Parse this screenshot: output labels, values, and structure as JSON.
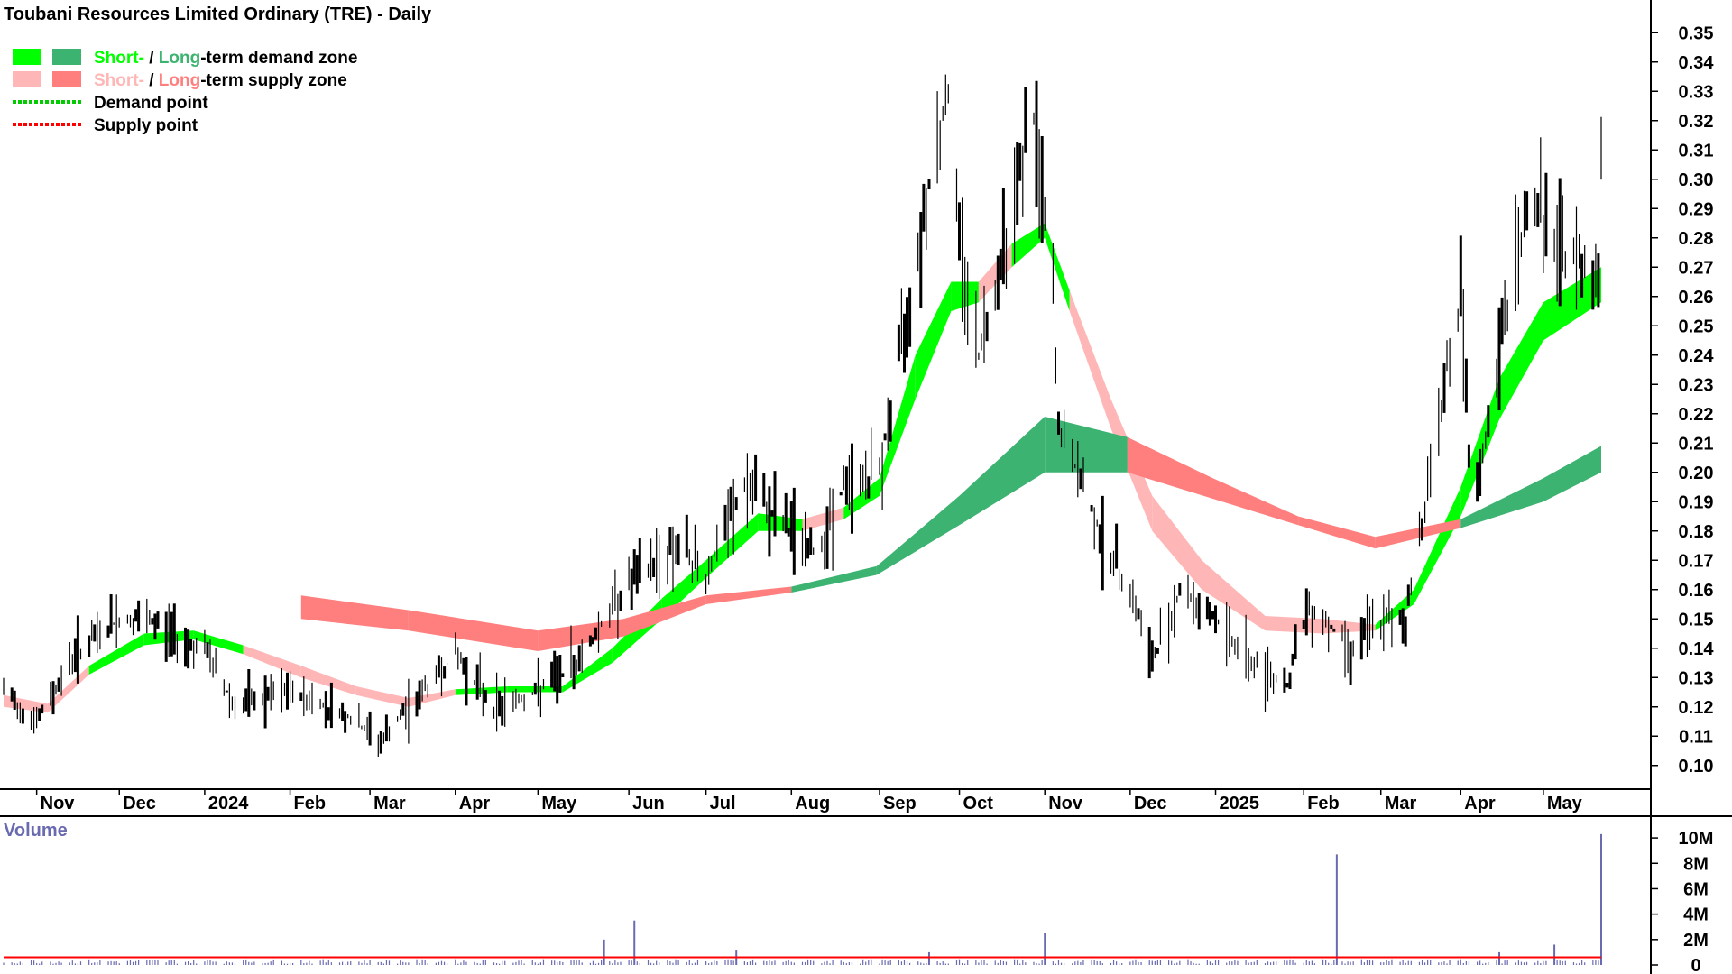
{
  "chart_data": {
    "type": "candlestick",
    "title": "Toubani Resources Limited Ordinary (TRE) - Daily",
    "y_axis": {
      "side": "right",
      "ylim": [
        0.095,
        0.355
      ],
      "ticks": [
        "0.10",
        "0.11",
        "0.12",
        "0.13",
        "0.14",
        "0.15",
        "0.16",
        "0.17",
        "0.18",
        "0.19",
        "0.20",
        "0.21",
        "0.22",
        "0.23",
        "0.24",
        "0.25",
        "0.26",
        "0.27",
        "0.28",
        "0.29",
        "0.30",
        "0.31",
        "0.32",
        "0.33",
        "0.34",
        "0.35"
      ]
    },
    "x_axis": {
      "start": "2023-10-20",
      "end": "2025-05-22",
      "labels": [
        {
          "text": "Nov",
          "date": "2023-11-01"
        },
        {
          "text": "Dec",
          "date": "2023-12-01"
        },
        {
          "text": "2024",
          "date": "2024-01-01"
        },
        {
          "text": "Feb",
          "date": "2024-02-01"
        },
        {
          "text": "Mar",
          "date": "2024-03-01"
        },
        {
          "text": "Apr",
          "date": "2024-04-01"
        },
        {
          "text": "May",
          "date": "2024-05-01"
        },
        {
          "text": "Jun",
          "date": "2024-06-03"
        },
        {
          "text": "Jul",
          "date": "2024-07-01"
        },
        {
          "text": "Aug",
          "date": "2024-08-01"
        },
        {
          "text": "Sep",
          "date": "2024-09-02"
        },
        {
          "text": "Oct",
          "date": "2024-10-01"
        },
        {
          "text": "Nov",
          "date": "2024-11-01"
        },
        {
          "text": "Dec",
          "date": "2024-12-02"
        },
        {
          "text": "2025",
          "date": "2025-01-02"
        },
        {
          "text": "Feb",
          "date": "2025-02-03"
        },
        {
          "text": "Mar",
          "date": "2025-03-03"
        },
        {
          "text": "Apr",
          "date": "2025-04-01"
        },
        {
          "text": "May",
          "date": "2025-05-01"
        }
      ]
    },
    "legend": {
      "placement": "top-left",
      "items": [
        {
          "parts": [
            {
              "text": "Short-",
              "color": "#00ff00"
            },
            {
              "text": " / ",
              "color": "#000000"
            },
            {
              "text": "Long",
              "color": "#3cb371"
            },
            {
              "text": "-term demand zone",
              "color": "#000000"
            }
          ],
          "swatches": [
            "#00ff00",
            "#3cb371"
          ]
        },
        {
          "parts": [
            {
              "text": "Short-",
              "color": "#ffb6b6"
            },
            {
              "text": " / ",
              "color": "#000000"
            },
            {
              "text": "Long",
              "color": "#ff7f7f"
            },
            {
              "text": "-term supply zone",
              "color": "#000000"
            }
          ],
          "swatches": [
            "#ffb6b6",
            "#ff7f7f"
          ]
        },
        {
          "parts": [
            {
              "text": "Demand point",
              "color": "#000000"
            }
          ],
          "dotted": "#00cc00"
        },
        {
          "parts": [
            {
              "text": "Supply point",
              "color": "#000000"
            }
          ],
          "dotted": "#ff0000"
        }
      ]
    },
    "colors": {
      "short_demand": "#00ff00",
      "long_demand": "#3cb371",
      "short_supply": "#ffb6b6",
      "long_supply": "#ff7f7f",
      "zone_overlap": "#ff6a20",
      "price_bar": "#000000",
      "volume_bar": "#6a6ab0",
      "volume_avg": "#ff0000"
    },
    "price_path": [
      {
        "date": "2023-10-20",
        "close": 0.125
      },
      {
        "date": "2023-11-01",
        "close": 0.115
      },
      {
        "date": "2023-11-15",
        "close": 0.138
      },
      {
        "date": "2023-12-01",
        "close": 0.15
      },
      {
        "date": "2023-12-15",
        "close": 0.148
      },
      {
        "date": "2024-01-02",
        "close": 0.138
      },
      {
        "date": "2024-01-12",
        "close": 0.12
      },
      {
        "date": "2024-02-01",
        "close": 0.125
      },
      {
        "date": "2024-02-20",
        "close": 0.118
      },
      {
        "date": "2024-03-05",
        "close": 0.108
      },
      {
        "date": "2024-03-20",
        "close": 0.125
      },
      {
        "date": "2024-04-01",
        "close": 0.138
      },
      {
        "date": "2024-04-15",
        "close": 0.12
      },
      {
        "date": "2024-05-01",
        "close": 0.125
      },
      {
        "date": "2024-05-15",
        "close": 0.135
      },
      {
        "date": "2024-06-01",
        "close": 0.16
      },
      {
        "date": "2024-06-20",
        "close": 0.175
      },
      {
        "date": "2024-07-01",
        "close": 0.165
      },
      {
        "date": "2024-07-15",
        "close": 0.195
      },
      {
        "date": "2024-08-01",
        "close": 0.18
      },
      {
        "date": "2024-08-10",
        "close": 0.172
      },
      {
        "date": "2024-08-20",
        "close": 0.195
      },
      {
        "date": "2024-09-02",
        "close": 0.2
      },
      {
        "date": "2024-09-12",
        "close": 0.255
      },
      {
        "date": "2024-09-20",
        "close": 0.3
      },
      {
        "date": "2024-09-27",
        "close": 0.33
      },
      {
        "date": "2024-10-01",
        "close": 0.28
      },
      {
        "date": "2024-10-08",
        "close": 0.24
      },
      {
        "date": "2024-10-15",
        "close": 0.27
      },
      {
        "date": "2024-10-22",
        "close": 0.3
      },
      {
        "date": "2024-10-28",
        "close": 0.32
      },
      {
        "date": "2024-11-04",
        "close": 0.26
      },
      {
        "date": "2024-11-06",
        "close": 0.215
      },
      {
        "date": "2024-11-15",
        "close": 0.195
      },
      {
        "date": "2024-11-25",
        "close": 0.17
      },
      {
        "date": "2024-12-02",
        "close": 0.16
      },
      {
        "date": "2024-12-10",
        "close": 0.135
      },
      {
        "date": "2024-12-20",
        "close": 0.16
      },
      {
        "date": "2025-01-02",
        "close": 0.15
      },
      {
        "date": "2025-01-15",
        "close": 0.135
      },
      {
        "date": "2025-01-28",
        "close": 0.128
      },
      {
        "date": "2025-02-05",
        "close": 0.155
      },
      {
        "date": "2025-02-20",
        "close": 0.14
      },
      {
        "date": "2025-03-01",
        "close": 0.148
      },
      {
        "date": "2025-03-12",
        "close": 0.15
      },
      {
        "date": "2025-03-20",
        "close": 0.195
      },
      {
        "date": "2025-03-26",
        "close": 0.23
      },
      {
        "date": "2025-04-01",
        "close": 0.26
      },
      {
        "date": "2025-04-05",
        "close": 0.185
      },
      {
        "date": "2025-04-10",
        "close": 0.21
      },
      {
        "date": "2025-04-20",
        "close": 0.27
      },
      {
        "date": "2025-04-28",
        "close": 0.295
      },
      {
        "date": "2025-05-05",
        "close": 0.275
      },
      {
        "date": "2025-05-15",
        "close": 0.272
      },
      {
        "date": "2025-05-21",
        "close": 0.27
      },
      {
        "date": "2025-05-22",
        "close": 0.31
      }
    ],
    "short_zone": [
      {
        "date": "2023-10-20",
        "a": 0.12,
        "b": 0.124,
        "state": "supply"
      },
      {
        "date": "2023-11-05",
        "a": 0.118,
        "b": 0.121,
        "state": "supply"
      },
      {
        "date": "2023-11-20",
        "a": 0.131,
        "b": 0.134,
        "state": "demand"
      },
      {
        "date": "2023-12-10",
        "a": 0.141,
        "b": 0.145,
        "state": "demand"
      },
      {
        "date": "2023-12-28",
        "a": 0.143,
        "b": 0.146,
        "state": "demand"
      },
      {
        "date": "2024-01-15",
        "a": 0.138,
        "b": 0.141,
        "state": "supply"
      },
      {
        "date": "2024-02-05",
        "a": 0.13,
        "b": 0.134,
        "state": "supply"
      },
      {
        "date": "2024-02-25",
        "a": 0.124,
        "b": 0.127,
        "state": "supply"
      },
      {
        "date": "2024-03-15",
        "a": 0.12,
        "b": 0.123,
        "state": "supply"
      },
      {
        "date": "2024-04-01",
        "a": 0.124,
        "b": 0.126,
        "state": "demand"
      },
      {
        "date": "2024-04-20",
        "a": 0.125,
        "b": 0.127,
        "state": "demand"
      },
      {
        "date": "2024-05-10",
        "a": 0.125,
        "b": 0.127,
        "state": "demand"
      },
      {
        "date": "2024-05-28",
        "a": 0.135,
        "b": 0.14,
        "state": "demand"
      },
      {
        "date": "2024-06-15",
        "a": 0.15,
        "b": 0.157,
        "state": "demand"
      },
      {
        "date": "2024-07-01",
        "a": 0.164,
        "b": 0.17,
        "state": "demand"
      },
      {
        "date": "2024-07-20",
        "a": 0.18,
        "b": 0.186,
        "state": "demand"
      },
      {
        "date": "2024-08-05",
        "a": 0.18,
        "b": 0.184,
        "state": "supply"
      },
      {
        "date": "2024-08-20",
        "a": 0.184,
        "b": 0.188,
        "state": "demand"
      },
      {
        "date": "2024-09-02",
        "a": 0.192,
        "b": 0.198,
        "state": "demand"
      },
      {
        "date": "2024-09-15",
        "a": 0.225,
        "b": 0.24,
        "state": "demand"
      },
      {
        "date": "2024-09-28",
        "a": 0.255,
        "b": 0.265,
        "state": "demand"
      },
      {
        "date": "2024-10-08",
        "a": 0.258,
        "b": 0.265,
        "state": "supply"
      },
      {
        "date": "2024-10-20",
        "a": 0.27,
        "b": 0.278,
        "state": "demand"
      },
      {
        "date": "2024-11-01",
        "a": 0.28,
        "b": 0.285,
        "state": "demand"
      },
      {
        "date": "2024-11-10",
        "a": 0.255,
        "b": 0.262,
        "state": "supply"
      },
      {
        "date": "2024-11-25",
        "a": 0.215,
        "b": 0.225,
        "state": "supply"
      },
      {
        "date": "2024-12-10",
        "a": 0.18,
        "b": 0.192,
        "state": "supply"
      },
      {
        "date": "2024-12-28",
        "a": 0.16,
        "b": 0.17,
        "state": "supply"
      },
      {
        "date": "2025-01-20",
        "a": 0.146,
        "b": 0.151,
        "state": "supply"
      },
      {
        "date": "2025-02-10",
        "a": 0.145,
        "b": 0.15,
        "state": "supply"
      },
      {
        "date": "2025-03-01",
        "a": 0.146,
        "b": 0.148,
        "state": "demand"
      },
      {
        "date": "2025-03-15",
        "a": 0.155,
        "b": 0.16,
        "state": "demand"
      },
      {
        "date": "2025-04-01",
        "a": 0.185,
        "b": 0.195,
        "state": "demand"
      },
      {
        "date": "2025-04-15",
        "a": 0.218,
        "b": 0.232,
        "state": "demand"
      },
      {
        "date": "2025-05-01",
        "a": 0.245,
        "b": 0.258,
        "state": "demand"
      },
      {
        "date": "2025-05-22",
        "a": 0.258,
        "b": 0.27,
        "state": "demand"
      }
    ],
    "long_zone": [
      {
        "date": "2024-02-05",
        "a": 0.15,
        "b": 0.158,
        "state": "supply"
      },
      {
        "date": "2024-03-15",
        "a": 0.146,
        "b": 0.153,
        "state": "supply"
      },
      {
        "date": "2024-05-01",
        "a": 0.139,
        "b": 0.146,
        "state": "supply"
      },
      {
        "date": "2024-06-01",
        "a": 0.144,
        "b": 0.15,
        "state": "supply"
      },
      {
        "date": "2024-07-01",
        "a": 0.155,
        "b": 0.158,
        "state": "supply"
      },
      {
        "date": "2024-08-01",
        "a": 0.159,
        "b": 0.161,
        "state": "demand"
      },
      {
        "date": "2024-09-01",
        "a": 0.165,
        "b": 0.168,
        "state": "demand"
      },
      {
        "date": "2024-10-01",
        "a": 0.182,
        "b": 0.192,
        "state": "demand"
      },
      {
        "date": "2024-11-01",
        "a": 0.2,
        "b": 0.219,
        "state": "demand"
      },
      {
        "date": "2024-12-01",
        "a": 0.2,
        "b": 0.212,
        "state": "supply"
      },
      {
        "date": "2025-01-01",
        "a": 0.191,
        "b": 0.198,
        "state": "supply"
      },
      {
        "date": "2025-02-01",
        "a": 0.182,
        "b": 0.185,
        "state": "supply"
      },
      {
        "date": "2025-03-01",
        "a": 0.174,
        "b": 0.178,
        "state": "supply"
      },
      {
        "date": "2025-04-01",
        "a": 0.181,
        "b": 0.184,
        "state": "demand"
      },
      {
        "date": "2025-05-01",
        "a": 0.19,
        "b": 0.198,
        "state": "demand"
      },
      {
        "date": "2025-05-22",
        "a": 0.2,
        "b": 0.209,
        "state": "demand"
      }
    ],
    "volume": {
      "label": "Volume",
      "ylim": [
        0,
        11
      ],
      "unit": "M",
      "ticks": [
        "0",
        "2M",
        "4M",
        "6M",
        "8M",
        "10M"
      ],
      "baseline": 0.3,
      "average": 0.6,
      "spikes": [
        {
          "date": "2024-05-25",
          "value": 2.0
        },
        {
          "date": "2024-06-05",
          "value": 3.5
        },
        {
          "date": "2024-07-12",
          "value": 1.2
        },
        {
          "date": "2024-09-20",
          "value": 1.0
        },
        {
          "date": "2024-11-01",
          "value": 2.5
        },
        {
          "date": "2025-02-15",
          "value": 8.7
        },
        {
          "date": "2025-04-15",
          "value": 1.0
        },
        {
          "date": "2025-05-05",
          "value": 1.6
        },
        {
          "date": "2025-05-22",
          "value": 10.3
        }
      ]
    }
  }
}
